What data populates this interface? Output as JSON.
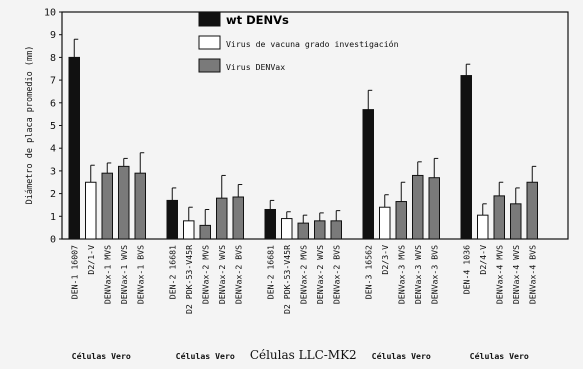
{
  "chart_data": {
    "type": "bar",
    "ylabel": "Diámetro de placa promedio (mm)",
    "ylim": [
      0,
      10
    ],
    "yticks": [
      0,
      1,
      2,
      3,
      4,
      5,
      6,
      7,
      8,
      9,
      10
    ],
    "grid": false,
    "legend_position": "top-center",
    "colors": {
      "wt": "#111111",
      "research": "#ffffff",
      "denvax": "#7a7a7a"
    },
    "legend": [
      {
        "key": "wt",
        "label": "wt DENVs"
      },
      {
        "key": "research",
        "label": "Virus de vacuna grado investigación"
      },
      {
        "key": "denvax",
        "label": "Virus DENVax"
      }
    ],
    "groups": [
      {
        "label": "Células Vero",
        "bars": [
          {
            "category": "DEN-1 16007",
            "series": "wt",
            "value": 8.0,
            "error": 0.8
          },
          {
            "category": "D2/1-V",
            "series": "research",
            "value": 2.5,
            "error": 0.75
          },
          {
            "category": "DENVax-1 MVS",
            "series": "denvax",
            "value": 2.9,
            "error": 0.45
          },
          {
            "category": "DENVax-1 WVS",
            "series": "denvax",
            "value": 3.2,
            "error": 0.35
          },
          {
            "category": "DENVax-1 BVS",
            "series": "denvax",
            "value": 2.9,
            "error": 0.9
          }
        ]
      },
      {
        "label": "Células Vero",
        "bars": [
          {
            "category": "DEN-2 16681",
            "series": "wt",
            "value": 1.7,
            "error": 0.55
          },
          {
            "category": "D2 PDK-53-V45R",
            "series": "research",
            "value": 0.8,
            "error": 0.6
          },
          {
            "category": "DENVax-2 MVS",
            "series": "denvax",
            "value": 0.6,
            "error": 0.7
          },
          {
            "category": "DENVax-2 WVS",
            "series": "denvax",
            "value": 1.8,
            "error": 1.0
          },
          {
            "category": "DENVax-2 BVS",
            "series": "denvax",
            "value": 1.85,
            "error": 0.55
          }
        ]
      },
      {
        "label": "Células LLC-MK2",
        "bars": [
          {
            "category": "DEN-2 16681",
            "series": "wt",
            "value": 1.3,
            "error": 0.4
          },
          {
            "category": "D2 PDK-53-V45R",
            "series": "research",
            "value": 0.9,
            "error": 0.3
          },
          {
            "category": "DENVax-2 MVS",
            "series": "denvax",
            "value": 0.7,
            "error": 0.35
          },
          {
            "category": "DENVax-2 WVS",
            "series": "denvax",
            "value": 0.8,
            "error": 0.35
          },
          {
            "category": "DENVax-2 BVS",
            "series": "denvax",
            "value": 0.8,
            "error": 0.45
          }
        ]
      },
      {
        "label": "Células Vero",
        "bars": [
          {
            "category": "DEN-3 16562",
            "series": "wt",
            "value": 5.7,
            "error": 0.85
          },
          {
            "category": "D2/3-V",
            "series": "research",
            "value": 1.4,
            "error": 0.55
          },
          {
            "category": "DENVax-3 MVS",
            "series": "denvax",
            "value": 1.65,
            "error": 0.85
          },
          {
            "category": "DENVax-3 WVS",
            "series": "denvax",
            "value": 2.8,
            "error": 0.6
          },
          {
            "category": "DENVax-3 BVS",
            "series": "denvax",
            "value": 2.7,
            "error": 0.85
          }
        ]
      },
      {
        "label": "Células Vero",
        "bars": [
          {
            "category": "DEN-4 1036",
            "series": "wt",
            "value": 7.2,
            "error": 0.5
          },
          {
            "category": "D2/4-V",
            "series": "research",
            "value": 1.05,
            "error": 0.5
          },
          {
            "category": "DENVax-4 MVS",
            "series": "denvax",
            "value": 1.9,
            "error": 0.6
          },
          {
            "category": "DENVax-4 WVS",
            "series": "denvax",
            "value": 1.55,
            "error": 0.7
          },
          {
            "category": "DENVax-4 BVS",
            "series": "denvax",
            "value": 2.5,
            "error": 0.7
          }
        ]
      }
    ]
  }
}
